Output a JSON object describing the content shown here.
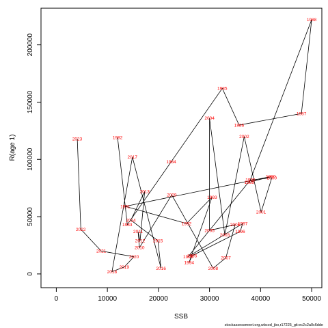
{
  "chart_data": {
    "type": "line",
    "xlabel": "SSB",
    "ylabel": "R(age 1)",
    "xlim": [
      -3000,
      52000
    ],
    "ylim": [
      -12000,
      232000
    ],
    "xticks": [
      0,
      10000,
      20000,
      30000,
      40000,
      50000
    ],
    "yticks": [
      0,
      50000,
      100000,
      150000,
      200000
    ],
    "xtick_labels": [
      "0",
      "10000",
      "20000",
      "30000",
      "40000",
      "50000"
    ],
    "ytick_labels": [
      "0",
      "50000",
      "100000",
      "150000",
      "200000"
    ],
    "line_color": "#000000",
    "label_color": "#ff0000",
    "grid": false,
    "points": [
      {
        "label": "1982",
        "x": 12000,
        "y": 119000
      },
      {
        "label": "1983",
        "x": 13900,
        "y": 43000
      },
      {
        "label": "1984",
        "x": 22500,
        "y": 98000
      },
      {
        "label": "1985",
        "x": 32500,
        "y": 162000
      },
      {
        "label": "1986",
        "x": 35800,
        "y": 130000
      },
      {
        "label": "1987",
        "x": 48000,
        "y": 140000
      },
      {
        "label": "1988",
        "x": 50000,
        "y": 222000
      },
      {
        "label": "1989",
        "x": 37800,
        "y": 80000
      },
      {
        "label": "1990",
        "x": 42000,
        "y": 85000
      },
      {
        "label": "1991",
        "x": 13500,
        "y": 59000
      },
      {
        "label": "1992",
        "x": 25500,
        "y": 44000
      },
      {
        "label": "1993",
        "x": 30500,
        "y": 67000
      },
      {
        "label": "1994",
        "x": 26000,
        "y": 10000
      },
      {
        "label": "1995",
        "x": 26600,
        "y": 16000
      },
      {
        "label": "1996",
        "x": 36000,
        "y": 37000
      },
      {
        "label": "1997",
        "x": 36500,
        "y": 44000
      },
      {
        "label": "1998",
        "x": 25800,
        "y": 15000
      },
      {
        "label": "1999",
        "x": 38000,
        "y": 82000
      },
      {
        "label": "2000",
        "x": 42200,
        "y": 84000
      },
      {
        "label": "2001",
        "x": 40100,
        "y": 54000
      },
      {
        "label": "2002",
        "x": 36800,
        "y": 120000
      },
      {
        "label": "2003",
        "x": 33000,
        "y": 34000
      },
      {
        "label": "2004",
        "x": 30000,
        "y": 136000
      },
      {
        "label": "2005",
        "x": 30000,
        "y": 38000
      },
      {
        "label": "2006",
        "x": 35000,
        "y": 43000
      },
      {
        "label": "2007",
        "x": 33200,
        "y": 14000
      },
      {
        "label": "2008",
        "x": 30700,
        "y": 5000
      },
      {
        "label": "2009",
        "x": 22600,
        "y": 69000
      },
      {
        "label": "2010",
        "x": 16300,
        "y": 23000
      },
      {
        "label": "2011",
        "x": 16000,
        "y": 37000
      },
      {
        "label": "2012",
        "x": 16400,
        "y": 29000
      },
      {
        "label": "2013",
        "x": 17300,
        "y": 72000
      },
      {
        "label": "2014",
        "x": 14600,
        "y": 47000
      },
      {
        "label": "2015",
        "x": 19900,
        "y": 29000
      },
      {
        "label": "2016",
        "x": 20500,
        "y": 5000
      },
      {
        "label": "2017",
        "x": 14900,
        "y": 102000
      },
      {
        "label": "2018",
        "x": 10900,
        "y": 2000
      },
      {
        "label": "2019",
        "x": 13300,
        "y": 6000
      },
      {
        "label": "2020",
        "x": 15200,
        "y": 15000
      },
      {
        "label": "2021",
        "x": 8800,
        "y": 20000
      },
      {
        "label": "2022",
        "x": 4800,
        "y": 39000
      },
      {
        "label": "2023",
        "x": 4100,
        "y": 118000
      }
    ],
    "path_order": [
      "1982",
      "1983",
      "1984",
      "1985",
      "1986",
      "1987",
      "1988",
      "1989",
      "1990",
      "1991",
      "1992",
      "1993",
      "1994",
      "1995",
      "1996",
      "1997",
      "1998",
      "1999",
      "2000",
      "2001",
      "2002",
      "2003",
      "2004",
      "2005",
      "2006",
      "2007",
      "2008",
      "2009",
      "2010",
      "2011",
      "2012",
      "2013",
      "2014",
      "2015",
      "2016",
      "2017",
      "2018",
      "2019",
      "2020",
      "2021",
      "2022",
      "2023"
    ]
  },
  "footer_text": "stockassessment.org,wbcod_jbo,r17225_git:ec2c2a0c6dde"
}
